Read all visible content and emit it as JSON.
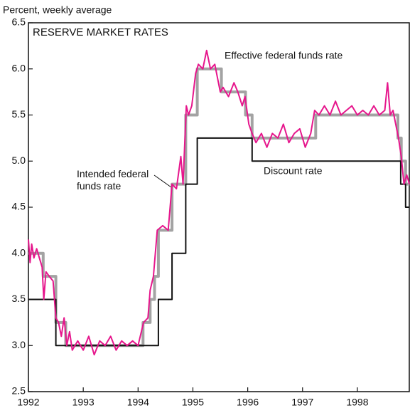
{
  "chart_data": {
    "type": "line",
    "title": "RESERVE MARKET RATES",
    "y_label": "Percent, weekly average",
    "xlim": [
      1992,
      1998.96
    ],
    "ylim": [
      2.5,
      6.5
    ],
    "xticks": [
      1992,
      1993,
      1994,
      1995,
      1996,
      1997,
      1998
    ],
    "yticks": [
      2.5,
      {
        "value": 3,
        "label": "3.0"
      },
      3.5,
      {
        "value": 4,
        "label": "4.0"
      },
      4.5,
      {
        "value": 5,
        "label": "5.0"
      },
      5.5,
      {
        "value": 6,
        "label": "6.0"
      },
      6.5
    ],
    "series": [
      {
        "name": "Intended federal funds rate",
        "color": "#a3a3a3",
        "x": [
          1992.0,
          1992.27,
          1992.27,
          1992.5,
          1992.5,
          1992.68,
          1992.68,
          1994.09,
          1994.09,
          1994.22,
          1994.22,
          1994.3,
          1994.3,
          1994.37,
          1994.37,
          1994.62,
          1994.62,
          1994.87,
          1994.87,
          1995.08,
          1995.08,
          1995.52,
          1995.52,
          1995.96,
          1995.96,
          1996.08,
          1996.08,
          1997.24,
          1997.24,
          1998.74,
          1998.74,
          1998.8,
          1998.8,
          1998.88,
          1998.88,
          1998.95
        ],
        "values": [
          4.0,
          4.0,
          3.75,
          3.75,
          3.25,
          3.25,
          3.0,
          3.0,
          3.25,
          3.25,
          3.5,
          3.5,
          3.75,
          3.75,
          4.25,
          4.25,
          4.75,
          4.75,
          5.5,
          5.5,
          6.0,
          6.0,
          5.75,
          5.75,
          5.5,
          5.5,
          5.25,
          5.25,
          5.5,
          5.5,
          5.25,
          5.25,
          5.0,
          5.0,
          4.75,
          4.75
        ]
      },
      {
        "name": "Discount rate",
        "color": "#111111",
        "x": [
          1992.0,
          1992.5,
          1992.5,
          1994.37,
          1994.37,
          1994.62,
          1994.62,
          1994.87,
          1994.87,
          1995.08,
          1995.08,
          1996.08,
          1996.08,
          1998.79,
          1998.79,
          1998.88,
          1998.88,
          1998.95
        ],
        "values": [
          3.5,
          3.5,
          3.0,
          3.0,
          3.5,
          3.5,
          4.0,
          4.0,
          4.75,
          4.75,
          5.25,
          5.25,
          5.0,
          5.0,
          4.75,
          4.75,
          4.5,
          4.5
        ]
      },
      {
        "name": "Effective federal funds rate",
        "color": "#e6168c",
        "x": [
          1992.0,
          1992.03,
          1992.06,
          1992.1,
          1992.15,
          1992.2,
          1992.25,
          1992.28,
          1992.32,
          1992.38,
          1992.45,
          1992.5,
          1992.55,
          1992.6,
          1992.65,
          1992.7,
          1992.75,
          1992.8,
          1992.9,
          1993.0,
          1993.1,
          1993.2,
          1993.3,
          1993.4,
          1993.5,
          1993.6,
          1993.7,
          1993.8,
          1993.9,
          1994.0,
          1994.1,
          1994.18,
          1994.22,
          1994.28,
          1994.35,
          1994.45,
          1994.55,
          1994.62,
          1994.7,
          1994.78,
          1994.82,
          1994.88,
          1994.92,
          1994.98,
          1995.05,
          1995.1,
          1995.18,
          1995.25,
          1995.32,
          1995.4,
          1995.5,
          1995.55,
          1995.65,
          1995.75,
          1995.82,
          1995.9,
          1995.95,
          1996.02,
          1996.08,
          1996.15,
          1996.25,
          1996.35,
          1996.45,
          1996.55,
          1996.65,
          1996.75,
          1996.85,
          1996.95,
          1997.05,
          1997.15,
          1997.22,
          1997.3,
          1997.4,
          1997.5,
          1997.6,
          1997.7,
          1997.8,
          1997.9,
          1998.0,
          1998.1,
          1998.2,
          1998.3,
          1998.4,
          1998.5,
          1998.55,
          1998.6,
          1998.65,
          1998.7,
          1998.75,
          1998.8,
          1998.85,
          1998.9,
          1998.95
        ],
        "values": [
          4.15,
          3.9,
          4.1,
          3.95,
          4.05,
          3.95,
          3.85,
          3.5,
          3.8,
          3.75,
          3.7,
          3.3,
          3.25,
          3.1,
          3.3,
          3.0,
          3.15,
          2.95,
          3.05,
          2.95,
          3.1,
          2.9,
          3.05,
          3.0,
          3.1,
          2.95,
          3.05,
          3.0,
          3.05,
          3.0,
          3.25,
          3.3,
          3.6,
          3.75,
          4.25,
          4.3,
          4.25,
          4.75,
          4.7,
          5.05,
          4.75,
          5.6,
          5.5,
          5.6,
          5.95,
          6.05,
          6.0,
          6.2,
          6.0,
          6.05,
          5.75,
          5.8,
          5.7,
          5.85,
          5.75,
          5.6,
          5.7,
          5.4,
          5.3,
          5.2,
          5.3,
          5.15,
          5.3,
          5.25,
          5.4,
          5.2,
          5.3,
          5.35,
          5.15,
          5.3,
          5.55,
          5.5,
          5.6,
          5.5,
          5.65,
          5.5,
          5.55,
          5.6,
          5.5,
          5.55,
          5.5,
          5.6,
          5.5,
          5.55,
          5.85,
          5.5,
          5.55,
          5.4,
          5.25,
          5.05,
          4.75,
          4.85,
          4.75
        ]
      }
    ]
  }
}
